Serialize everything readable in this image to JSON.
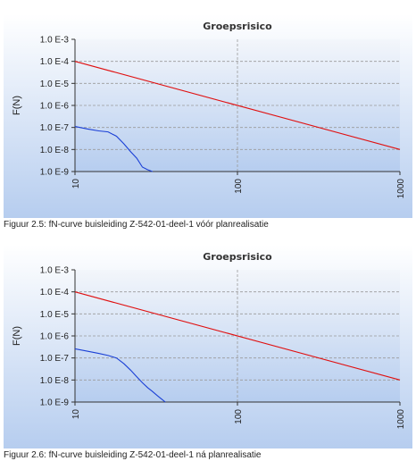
{
  "figures": [
    {
      "caption": "Figuur 2.5: fN-curve buisleiding Z-542-01-deel-1 vóór planrealisatie"
    },
    {
      "caption": "Figuur 2.6: fN-curve buisleiding Z-542-01-deel-1 ná planrealisatie"
    }
  ],
  "colors": {
    "norm_line": "#e01010",
    "fn_curve": "#1a3fd6",
    "plot_bg_top": "#f3f6fb",
    "plot_bg_bottom": "#b6cdef",
    "grid": "#9a9a9a"
  },
  "chart_data": [
    {
      "type": "line",
      "title": "Groepsrisico",
      "xlabel": "",
      "ylabel": "F(N)",
      "x_scale": "log",
      "y_scale": "log",
      "xlim": [
        10,
        1000
      ],
      "ylim": [
        1e-09,
        0.001
      ],
      "x_ticks": [
        10,
        100,
        1000
      ],
      "x_tick_labels": [
        "10",
        "100",
        "1000"
      ],
      "y_ticks": [
        0.001,
        0.0001,
        1e-05,
        1e-06,
        1e-07,
        1e-08,
        1e-09
      ],
      "y_tick_labels": [
        "1.0 E-3",
        "1.0 E-4",
        "1.0 E-5",
        "1.0 E-6",
        "1.0 E-7",
        "1.0 E-8",
        "1.0 E-9"
      ],
      "grid": true,
      "series": [
        {
          "role": "norm",
          "x": [
            10,
            1000
          ],
          "y": [
            0.0001,
            1e-08
          ]
        },
        {
          "role": "fn",
          "x": [
            10,
            12,
            14,
            16,
            18,
            20,
            22,
            24,
            26,
            28,
            30
          ],
          "y": [
            1.1e-07,
            8.5e-08,
            7e-08,
            6.3e-08,
            4e-08,
            1.8e-08,
            8e-09,
            4e-09,
            1.6e-09,
            1.2e-09,
            1e-09
          ]
        }
      ]
    },
    {
      "type": "line",
      "title": "Groepsrisico",
      "xlabel": "",
      "ylabel": "F(N)",
      "x_scale": "log",
      "y_scale": "log",
      "xlim": [
        10,
        1000
      ],
      "ylim": [
        1e-09,
        0.001
      ],
      "x_ticks": [
        10,
        100,
        1000
      ],
      "x_tick_labels": [
        "10",
        "100",
        "1000"
      ],
      "y_ticks": [
        0.001,
        0.0001,
        1e-05,
        1e-06,
        1e-07,
        1e-08,
        1e-09
      ],
      "y_tick_labels": [
        "1.0 E-3",
        "1.0 E-4",
        "1.0 E-5",
        "1.0 E-6",
        "1.0 E-7",
        "1.0 E-8",
        "1.0 E-9"
      ],
      "grid": true,
      "series": [
        {
          "role": "norm",
          "x": [
            10,
            1000
          ],
          "y": [
            0.0001,
            1e-08
          ]
        },
        {
          "role": "fn",
          "x": [
            10,
            12,
            14,
            16,
            18,
            20,
            22,
            24,
            26,
            28,
            30,
            32,
            34,
            36
          ],
          "y": [
            2.6e-07,
            2e-07,
            1.6e-07,
            1.3e-07,
            1e-07,
            5.5e-08,
            2.8e-08,
            1.4e-08,
            7.5e-09,
            4.5e-09,
            3e-09,
            2e-09,
            1.4e-09,
            1e-09
          ]
        }
      ]
    }
  ]
}
